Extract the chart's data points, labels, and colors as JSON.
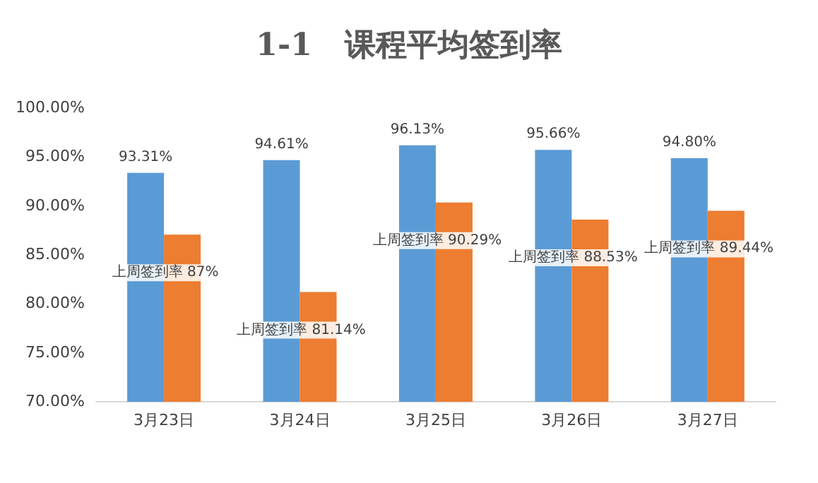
{
  "chart_data": {
    "type": "bar",
    "title": "1-1   课程平均签到率",
    "categories": [
      "3月23日",
      "3月24日",
      "3月25日",
      "3月26日",
      "3月27日"
    ],
    "series": [
      {
        "color": "#5b9bd5",
        "values": [
          93.31,
          94.61,
          96.13,
          95.66,
          94.8
        ],
        "value_labels": [
          "93.31%",
          "94.61%",
          "96.13%",
          "95.66%",
          "94.80%"
        ]
      },
      {
        "color": "#ed7d31",
        "values": [
          87,
          81.14,
          90.29,
          88.53,
          89.44
        ],
        "value_labels": [
          "上周签到率 87%",
          "上周签到率 81.14%",
          "上周签到率 90.29%",
          "上周签到率 88.53%",
          "上周签到率 89.44%"
        ]
      }
    ],
    "ylim": [
      70,
      100
    ],
    "yticks": [
      {
        "value": 70,
        "label": "70.00%"
      },
      {
        "value": 75,
        "label": "75.00%"
      },
      {
        "value": 80,
        "label": "80.00%"
      },
      {
        "value": 85,
        "label": "85.00%"
      },
      {
        "value": 90,
        "label": "90.00%"
      },
      {
        "value": 95,
        "label": "95.00%"
      },
      {
        "value": 100,
        "label": "100.00%"
      }
    ],
    "grid": false
  }
}
